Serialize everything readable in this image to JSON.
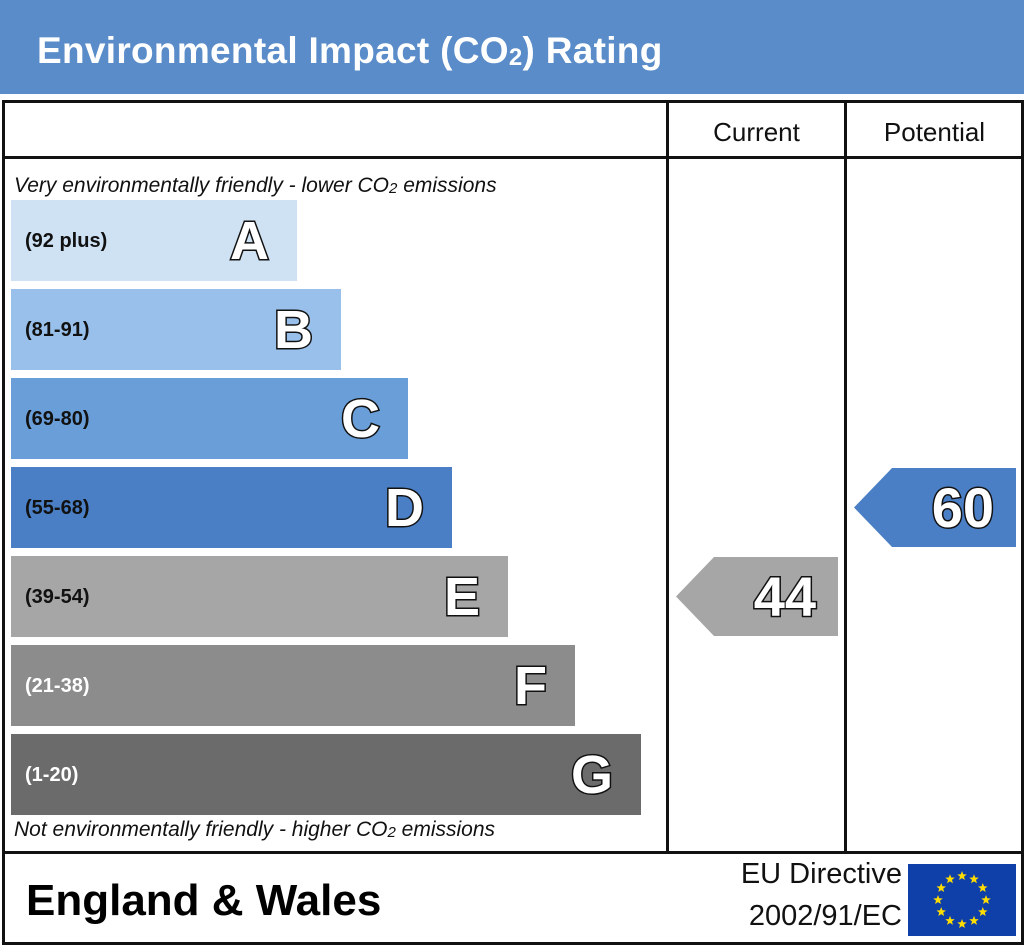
{
  "title": {
    "main": "Environmental Impact (CO",
    "sub": "2",
    "end": ") Rating"
  },
  "columns": {
    "current": "Current",
    "potential": "Potential"
  },
  "captions": {
    "top_a": "Very environmentally friendly - lower CO",
    "top_sub": "2",
    "top_b": " emissions",
    "bottom_a": "Not environmentally friendly - higher CO",
    "bottom_sub": "2",
    "bottom_b": " emissions"
  },
  "bands": [
    {
      "range": "(92 plus)",
      "letter": "A",
      "color": "#cfe2f3"
    },
    {
      "range": "(81-91)",
      "letter": "B",
      "color": "#98c0ea"
    },
    {
      "range": "(69-80)",
      "letter": "C",
      "color": "#6a9ed8"
    },
    {
      "range": "(55-68)",
      "letter": "D",
      "color": "#4a7fc6"
    },
    {
      "range": "(39-54)",
      "letter": "E",
      "color": "#a6a6a6"
    },
    {
      "range": "(21-38)",
      "letter": "F",
      "color": "#8c8c8c"
    },
    {
      "range": "(1-20)",
      "letter": "G",
      "color": "#6b6b6b"
    }
  ],
  "ratings": {
    "current": {
      "value": "44",
      "band": "E",
      "color": "#a6a6a6"
    },
    "potential": {
      "value": "60",
      "band": "D",
      "color": "#4a7fc6"
    }
  },
  "footer": {
    "region": "England & Wales",
    "directive_line1": "EU Directive",
    "directive_line2": "2002/91/EC"
  },
  "icons": {
    "flag": "eu-flag-icon"
  }
}
